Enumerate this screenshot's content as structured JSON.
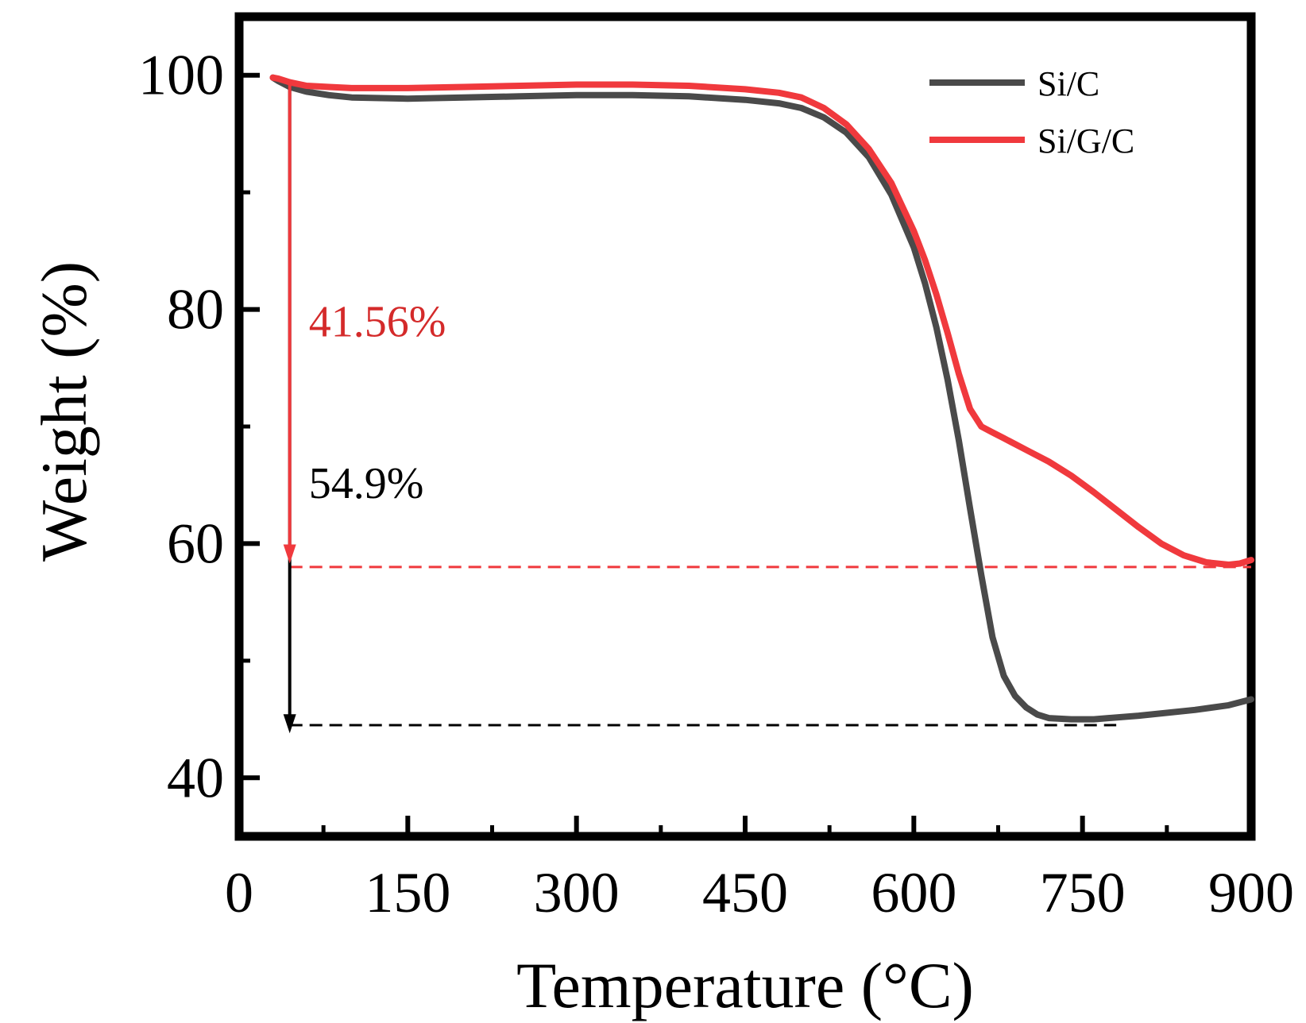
{
  "chart_data": {
    "type": "line",
    "title": "",
    "xlabel": "Temperature (°C)",
    "ylabel": "Weight (%)",
    "xlim": [
      0,
      900
    ],
    "ylim": [
      35,
      105
    ],
    "x_ticks": [
      0,
      150,
      300,
      450,
      600,
      750,
      900
    ],
    "x_tick_labels": [
      "0",
      "150",
      "300",
      "450",
      "600",
      "750",
      "900"
    ],
    "y_ticks": [
      40,
      60,
      80,
      100
    ],
    "y_tick_labels": [
      "40",
      "60",
      "80",
      "100"
    ],
    "grid": false,
    "legend_position": "top-right",
    "series": [
      {
        "name": "Si/C",
        "color": "#4a4a4a",
        "x": [
          30,
          35,
          45,
          60,
          80,
          100,
          150,
          200,
          250,
          300,
          350,
          400,
          450,
          480,
          500,
          520,
          540,
          560,
          580,
          600,
          610,
          620,
          630,
          640,
          650,
          660,
          670,
          680,
          690,
          700,
          710,
          720,
          740,
          760,
          800,
          850,
          880,
          900
        ],
        "y": [
          99.8,
          99.5,
          99.0,
          98.6,
          98.3,
          98.1,
          98.0,
          98.1,
          98.2,
          98.3,
          98.3,
          98.2,
          97.9,
          97.6,
          97.2,
          96.4,
          95.1,
          93.0,
          89.8,
          85.3,
          82.2,
          78.5,
          74.0,
          68.8,
          63.0,
          57.3,
          52.0,
          48.7,
          47.0,
          46.0,
          45.4,
          45.1,
          45.0,
          45.0,
          45.3,
          45.8,
          46.2,
          46.7
        ]
      },
      {
        "name": "Si/G/C",
        "color": "#f0393d",
        "x": [
          30,
          35,
          45,
          60,
          80,
          100,
          150,
          200,
          250,
          300,
          350,
          400,
          450,
          480,
          500,
          520,
          540,
          560,
          580,
          600,
          610,
          620,
          630,
          640,
          650,
          660,
          670,
          680,
          690,
          700,
          720,
          740,
          760,
          780,
          800,
          820,
          840,
          860,
          880,
          890,
          900
        ],
        "y": [
          99.8,
          99.7,
          99.4,
          99.1,
          99.0,
          98.9,
          98.9,
          99.0,
          99.1,
          99.2,
          99.2,
          99.1,
          98.8,
          98.5,
          98.1,
          97.2,
          95.8,
          93.7,
          90.8,
          86.7,
          84.2,
          81.3,
          78.0,
          74.5,
          71.5,
          70.0,
          69.5,
          69.0,
          68.5,
          68.0,
          67.0,
          65.8,
          64.4,
          62.9,
          61.4,
          60.0,
          59.0,
          58.4,
          58.2,
          58.3,
          58.6
        ]
      }
    ],
    "reference_lines": [
      {
        "y": 58.0,
        "x_start": 45,
        "x_end": 900,
        "color": "#f0393d",
        "style": "dashed"
      },
      {
        "y": 44.5,
        "x_start": 45,
        "x_end": 780,
        "color": "#000000",
        "style": "dashed"
      }
    ],
    "arrows": [
      {
        "x": 45,
        "y_start": 99.4,
        "y_end": 58.3,
        "color": "#f0393d"
      },
      {
        "x": 45,
        "y_start": 99.0,
        "y_end": 43.8,
        "color": "#000000"
      }
    ],
    "annotations": [
      {
        "text": "41.56%",
        "color": "#d42a2a",
        "x": 62,
        "y": 77.7
      },
      {
        "text": "54.9%",
        "color": "#000000",
        "x": 62,
        "y": 63.9
      }
    ]
  }
}
